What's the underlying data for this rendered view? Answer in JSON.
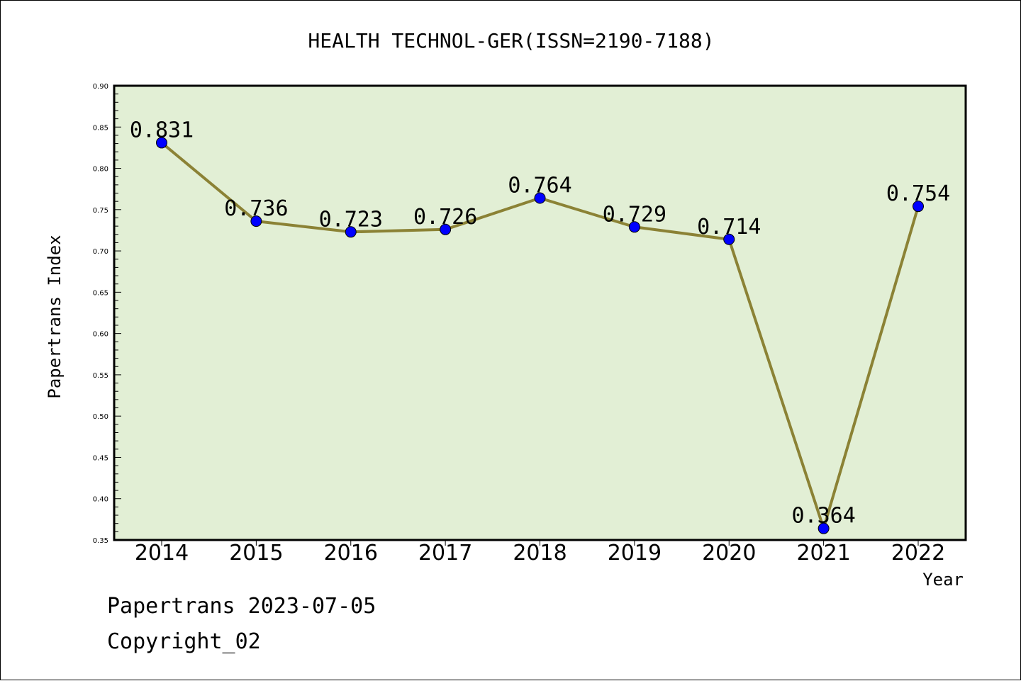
{
  "chart_data": {
    "type": "line",
    "title": "HEALTH TECHNOL-GER(ISSN=2190-7188)",
    "xlabel": "Year",
    "ylabel": "Papertrans Index",
    "categories": [
      "2014",
      "2015",
      "2016",
      "2017",
      "2018",
      "2019",
      "2020",
      "2021",
      "2022"
    ],
    "series": [
      {
        "values": [
          0.831,
          0.736,
          0.723,
          0.726,
          0.764,
          0.729,
          0.714,
          0.364,
          0.754
        ],
        "data_labels": [
          "0.831",
          "0.736",
          "0.723",
          "0.726",
          "0.764",
          "0.729",
          "0.714",
          "0.364",
          "0.754"
        ]
      }
    ],
    "ylim": [
      0.35,
      0.9
    ],
    "yticks": [
      "0.35",
      "0.40",
      "0.45",
      "0.50",
      "0.55",
      "0.60",
      "0.65",
      "0.70",
      "0.75",
      "0.80",
      "0.85",
      "0.90"
    ],
    "grid": false,
    "legend": "none",
    "colors": {
      "plot_background": "#e2efd5",
      "line": "#8b8235",
      "marker": "#0000ff",
      "marker_outline": "#000000"
    }
  },
  "footer": {
    "line1": "Papertrans 2023-07-05",
    "line2": "Copyright_02"
  }
}
